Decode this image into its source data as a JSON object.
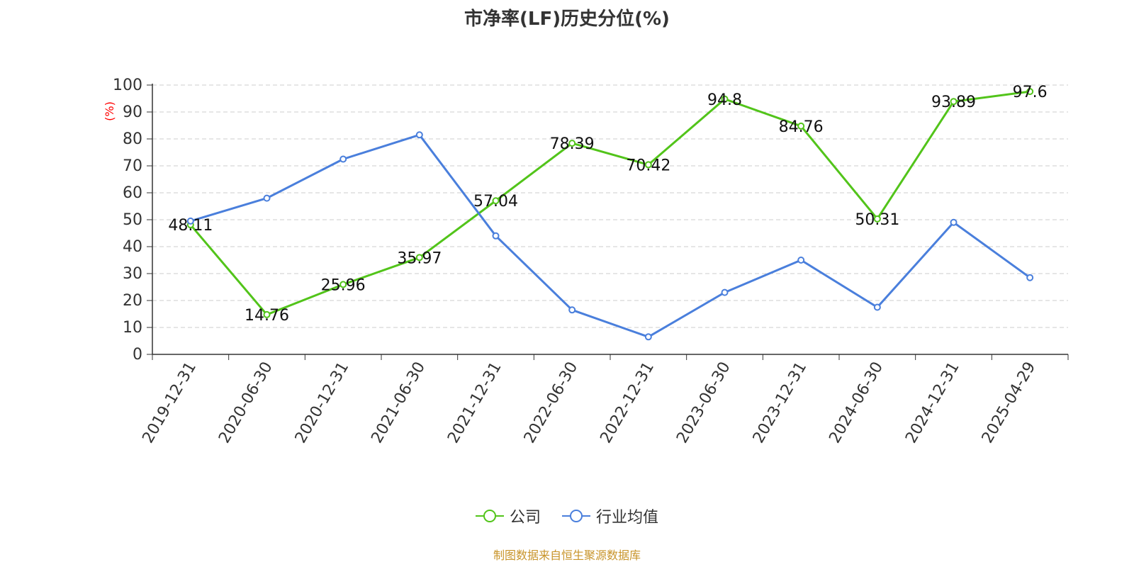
{
  "title": "市净率(LF)历史分位(%)",
  "source_note": "制图数据来自恒生聚源数据库",
  "colors": {
    "company": "#52c41a",
    "industry": "#4a7fdc",
    "axis": "#333333",
    "grid": "#cccccc",
    "ylabel": "#ff0000",
    "source": "#c8942a"
  },
  "chart_data": {
    "type": "line",
    "title": "市净率(LF)历史分位(%)",
    "ylabel": "(%)",
    "xlabel": "",
    "ylim": [
      0,
      100
    ],
    "yticks": [
      0,
      10,
      20,
      30,
      40,
      50,
      60,
      70,
      80,
      90,
      100
    ],
    "grid": true,
    "legend_position": "bottom-center",
    "categories": [
      "2019-12-31",
      "2020-06-30",
      "2020-12-31",
      "2021-06-30",
      "2021-12-31",
      "2022-06-30",
      "2022-12-31",
      "2023-06-30",
      "2023-12-31",
      "2024-06-30",
      "2024-12-31",
      "2025-04-29"
    ],
    "series": [
      {
        "name": "公司",
        "color": "#52c41a",
        "show_labels": true,
        "values": [
          48.11,
          14.76,
          25.96,
          35.97,
          57.04,
          78.39,
          70.42,
          94.8,
          84.76,
          50.31,
          93.89,
          97.6
        ]
      },
      {
        "name": "行业均值",
        "color": "#4a7fdc",
        "show_labels": false,
        "values": [
          49.5,
          58.0,
          72.5,
          81.5,
          44.0,
          16.5,
          6.5,
          23.0,
          35.0,
          17.5,
          49.0,
          28.5
        ]
      }
    ]
  }
}
